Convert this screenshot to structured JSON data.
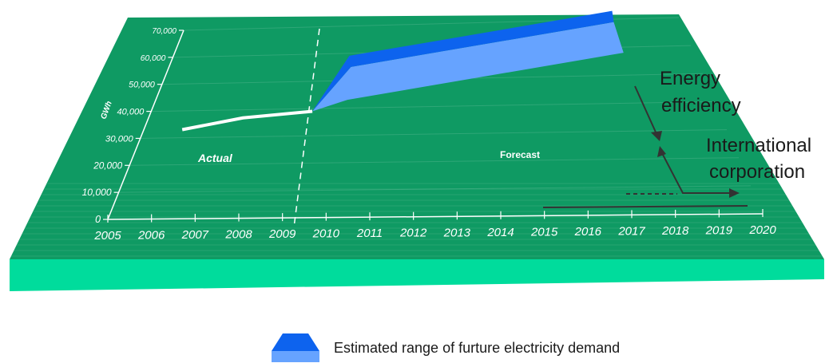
{
  "chart_data": {
    "type": "area",
    "title": "",
    "ylabel": "GWh",
    "xlabel": "",
    "ylim": [
      0,
      70000
    ],
    "y_ticks": [
      "0",
      "10,000",
      "20,000",
      "30,000",
      "40,000",
      "50,000",
      "60,000",
      "70,000"
    ],
    "x_ticks": [
      "2005",
      "2006",
      "2007",
      "2008",
      "2009",
      "2010",
      "2011",
      "2012",
      "2013",
      "2014",
      "2015",
      "2016",
      "2017",
      "2018",
      "2019",
      "2020"
    ],
    "regions": {
      "actual": "Actual",
      "forecast": "Forecast"
    },
    "series": [
      {
        "name": "Actual",
        "x": [
          2006,
          2007.5,
          2009.3
        ],
        "y": [
          33000,
          37000,
          39000
        ]
      }
    ],
    "range": {
      "x": [
        2009.3,
        2010.2,
        2018
      ],
      "low": [
        39000,
        43000,
        58000
      ],
      "high": [
        39000,
        55000,
        69000
      ]
    },
    "annotations": {
      "energy_efficiency": [
        "Energy",
        "efficiency"
      ],
      "international": [
        "International",
        "corporation"
      ]
    },
    "legend": {
      "label": "Estimated range of furture electricity demand",
      "placement": "bottom-center"
    },
    "grid": true
  },
  "colors": {
    "board_top": "#0f9a63",
    "board_front": "#00dc9c",
    "band_front": "#66a3ff",
    "band_top": "#0d63ee",
    "line": "#ffffff"
  }
}
